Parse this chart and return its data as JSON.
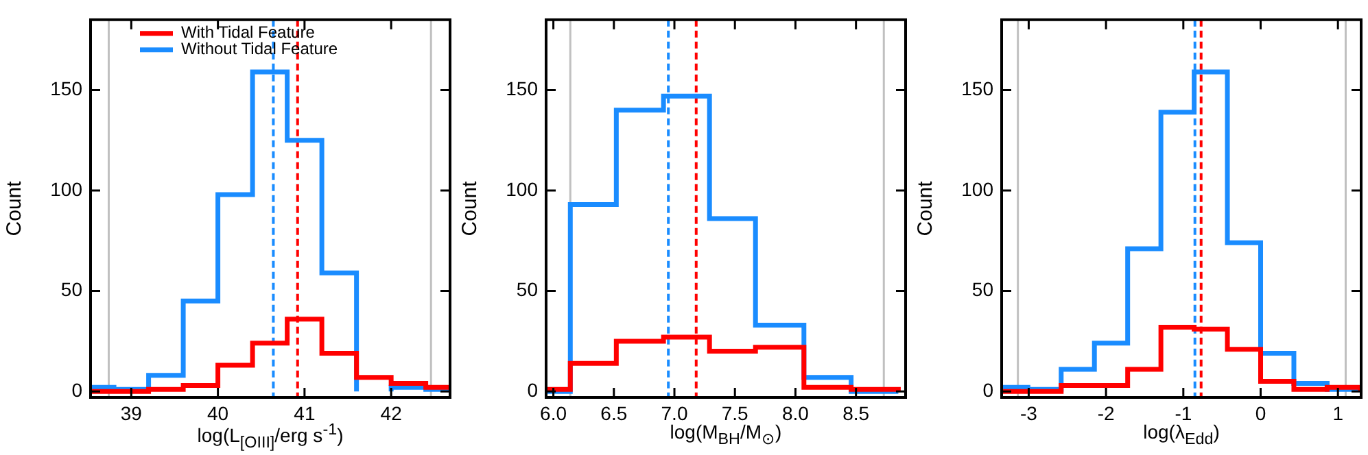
{
  "chart_data": [
    {
      "type": "histogram",
      "xlabel": "log(L$_{[OIII]}$/erg s$^{-1}$)",
      "ylabel": "Count",
      "xlim": [
        38.53,
        42.68
      ],
      "xticks": [
        39,
        40,
        41,
        42
      ],
      "ylim": [
        -3,
        185
      ],
      "yticks": [
        0,
        50,
        100,
        150
      ],
      "legend": "top left",
      "grid": false,
      "bins": [
        38.4,
        38.8,
        39.2,
        39.6,
        40.0,
        40.4,
        40.8,
        41.2,
        41.6,
        42.0,
        42.4,
        42.8
      ],
      "series": [
        {
          "name": "With Tidal Feature",
          "color": "#ff0000",
          "values": [
            0,
            0,
            1,
            3,
            13,
            24,
            36,
            19,
            7,
            4,
            2
          ]
        },
        {
          "name": "Without Tidal Feature",
          "color": "#1a8cff",
          "values": [
            2,
            1,
            8,
            45,
            98,
            159,
            125,
            59,
            null,
            2,
            1
          ]
        }
      ],
      "ref_lines": [
        {
          "axis": "x",
          "value": 38.74,
          "color": "#c0c0c0",
          "line_style": "solid"
        },
        {
          "axis": "x",
          "value": 42.46,
          "color": "#c0c0c0",
          "line_style": "solid"
        },
        {
          "axis": "x",
          "value": 40.64,
          "color": "#1a8cff",
          "line_style": "dashed"
        },
        {
          "axis": "x",
          "value": 40.92,
          "color": "#ff0000",
          "line_style": "dashed"
        }
      ]
    },
    {
      "type": "histogram",
      "xlabel": "log(M$_{BH}$/M$_{⊙}$)",
      "ylabel": "Count",
      "xlim": [
        5.94,
        8.91
      ],
      "xticks": [
        {
          "value": 6,
          "label": "6.0"
        },
        6.5,
        {
          "value": 7,
          "label": "7.0"
        },
        7.5,
        {
          "value": 8,
          "label": "8.0"
        },
        8.5
      ],
      "ylim": [
        -3,
        185
      ],
      "yticks": [
        0,
        50,
        100,
        150
      ],
      "legend": false,
      "grid": false,
      "bins": [
        5.75,
        6.14,
        6.52,
        6.91,
        7.29,
        7.67,
        8.07,
        8.46,
        8.85
      ],
      "series": [
        {
          "color": "#ff0000",
          "values": [
            1,
            14,
            25,
            27,
            20,
            22,
            2,
            1
          ]
        },
        {
          "color": "#1a8cff",
          "values": [
            0,
            93,
            140,
            147,
            86,
            33,
            7,
            0
          ]
        }
      ],
      "ref_lines": [
        {
          "axis": "x",
          "value": 6.14,
          "color": "#c0c0c0",
          "line_style": "solid"
        },
        {
          "axis": "x",
          "value": 8.73,
          "color": "#c0c0c0",
          "line_style": "solid"
        },
        {
          "axis": "x",
          "value": 6.95,
          "color": "#1a8cff",
          "line_style": "dashed"
        },
        {
          "axis": "x",
          "value": 7.18,
          "color": "#ff0000",
          "line_style": "dashed"
        }
      ]
    },
    {
      "type": "histogram",
      "xlabel": "log(λ$_{Edd}$)",
      "ylabel": "Count",
      "xlim": [
        -3.35,
        1.3
      ],
      "xticks": [
        -3,
        -2,
        -1,
        0,
        1
      ],
      "ylim": [
        -3,
        185
      ],
      "yticks": [
        0,
        50,
        100,
        150
      ],
      "legend": false,
      "grid": false,
      "bins": [
        -3.44,
        -3.01,
        -2.58,
        -2.15,
        -1.72,
        -1.29,
        -0.86,
        -0.43,
        0,
        0.43,
        0.86,
        1.29
      ],
      "series": [
        {
          "color": "#ff0000",
          "values": [
            0,
            0,
            3,
            3,
            11,
            32,
            31,
            21,
            5,
            1,
            2
          ]
        },
        {
          "color": "#1a8cff",
          "values": [
            2,
            1,
            11,
            24,
            71,
            139,
            159,
            74,
            19,
            4,
            1
          ]
        }
      ],
      "ref_lines": [
        {
          "axis": "x",
          "value": -3.14,
          "color": "#c0c0c0",
          "line_style": "solid"
        },
        {
          "axis": "x",
          "value": 1.1,
          "color": "#c0c0c0",
          "line_style": "solid"
        },
        {
          "axis": "x",
          "value": -0.85,
          "color": "#1a8cff",
          "line_style": "dashed"
        },
        {
          "axis": "x",
          "value": -0.77,
          "color": "#ff0000",
          "line_style": "dashed"
        }
      ]
    }
  ]
}
